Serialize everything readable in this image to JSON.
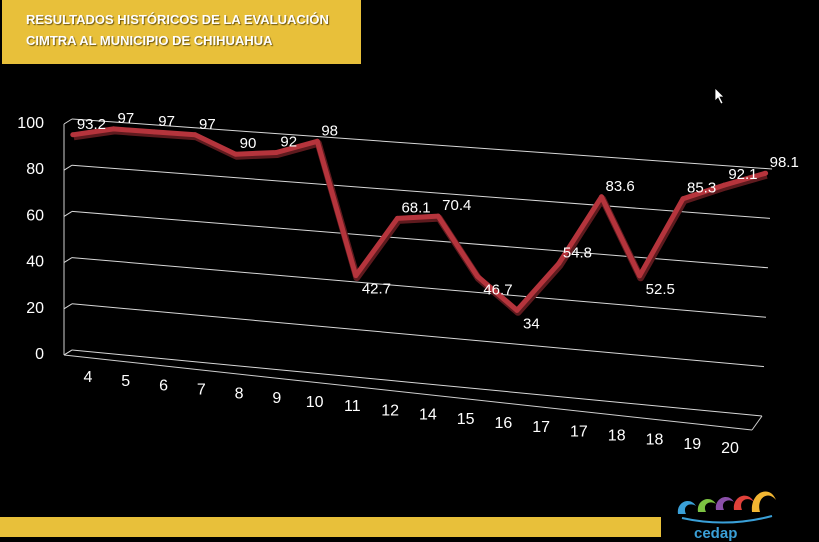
{
  "header": {
    "title_line1": "RESULTADOS HISTÓRICOS DE LA EVALUACIÓN",
    "title_line2": "CIMTRA AL MUNICIPIO DE CHIHUAHUA"
  },
  "logo": {
    "text": "cedap"
  },
  "colors": {
    "accent_yellow": "#E8C03A",
    "line": "#B5343C",
    "background": "#000000",
    "text": "#FFFFFF"
  },
  "chart_data": {
    "type": "line",
    "title": "",
    "xlabel": "",
    "ylabel": "",
    "ylim": [
      0,
      100
    ],
    "yticks": [
      "0",
      "20",
      "40",
      "60",
      "80",
      "100"
    ],
    "grid": true,
    "categories": [
      "4",
      "5",
      "6",
      "7",
      "8",
      "9",
      "10",
      "11",
      "12",
      "14",
      "15",
      "16",
      "17",
      "17",
      "18",
      "18",
      "19",
      "20"
    ],
    "series": [
      {
        "values": [
          93.2,
          97,
          97,
          97,
          90,
          92,
          98,
          42.7,
          68.1,
          70.4,
          46.7,
          34,
          54.8,
          83.6,
          52.5,
          85.3,
          92.1,
          98.1
        ],
        "labels": [
          "93.2",
          "97",
          "97",
          "97",
          "90",
          "92",
          "98",
          "42.7",
          "68.1",
          "70.4",
          "46.7",
          "34",
          "54.8",
          "83.6",
          "52.5",
          "85.3",
          "92.1",
          "98.1"
        ]
      }
    ]
  }
}
